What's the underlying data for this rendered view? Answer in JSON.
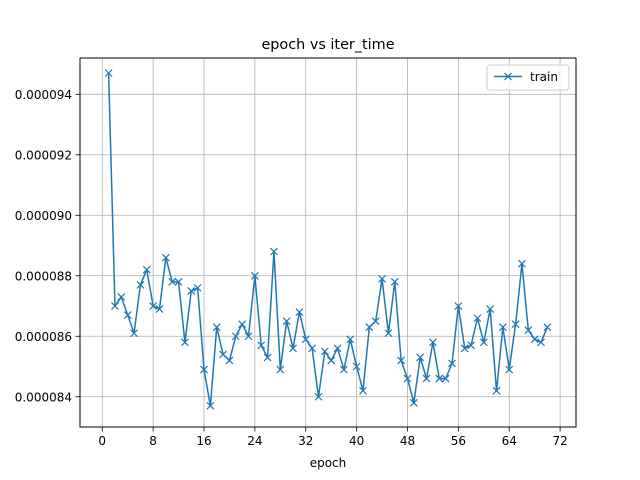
{
  "chart_data": {
    "type": "line",
    "title": "epoch vs iter_time",
    "xlabel": "epoch",
    "ylabel": "",
    "xlim": [
      -3.5,
      74.5
    ],
    "ylim": [
      8.3e-05,
      9.52e-05
    ],
    "xticks": [
      0,
      8,
      16,
      24,
      32,
      40,
      48,
      56,
      64,
      72
    ],
    "xtick_labels": [
      "0",
      "8",
      "16",
      "24",
      "32",
      "40",
      "48",
      "56",
      "64",
      "72"
    ],
    "yticks": [
      8.4e-05,
      8.6e-05,
      8.8e-05,
      9e-05,
      9.2e-05,
      9.4e-05
    ],
    "ytick_labels": [
      "0.000084",
      "0.000086",
      "0.000088",
      "0.000090",
      "0.000092",
      "0.000094"
    ],
    "grid": true,
    "legend_position": "upper right",
    "series": [
      {
        "name": "train",
        "color": "#1f77b4",
        "marker": "x",
        "x": [
          1,
          2,
          3,
          4,
          5,
          6,
          7,
          8,
          9,
          10,
          11,
          12,
          13,
          14,
          15,
          16,
          17,
          18,
          19,
          20,
          21,
          22,
          23,
          24,
          25,
          26,
          27,
          28,
          29,
          30,
          31,
          32,
          33,
          34,
          35,
          36,
          37,
          38,
          39,
          40,
          41,
          42,
          43,
          44,
          45,
          46,
          47,
          48,
          49,
          50,
          51,
          52,
          53,
          54,
          55,
          56,
          57,
          58,
          59,
          60,
          61,
          62,
          63,
          64,
          65,
          66,
          67,
          68,
          69,
          70
        ],
        "y": [
          9.47e-05,
          8.7e-05,
          8.73e-05,
          8.67e-05,
          8.61e-05,
          8.77e-05,
          8.82e-05,
          8.7e-05,
          8.69e-05,
          8.86e-05,
          8.78e-05,
          8.78e-05,
          8.58e-05,
          8.75e-05,
          8.76e-05,
          8.49e-05,
          8.37e-05,
          8.63e-05,
          8.54e-05,
          8.52e-05,
          8.6e-05,
          8.64e-05,
          8.6e-05,
          8.8e-05,
          8.57e-05,
          8.53e-05,
          8.88e-05,
          8.49e-05,
          8.65e-05,
          8.56e-05,
          8.68e-05,
          8.59e-05,
          8.56e-05,
          8.4e-05,
          8.55e-05,
          8.52e-05,
          8.56e-05,
          8.49e-05,
          8.59e-05,
          8.5e-05,
          8.42e-05,
          8.63e-05,
          8.65e-05,
          8.79e-05,
          8.61e-05,
          8.78e-05,
          8.52e-05,
          8.46e-05,
          8.38e-05,
          8.53e-05,
          8.46e-05,
          8.58e-05,
          8.46e-05,
          8.46e-05,
          8.51e-05,
          8.7e-05,
          8.56e-05,
          8.57e-05,
          8.66e-05,
          8.58e-05,
          8.69e-05,
          8.42e-05,
          8.63e-05,
          8.49e-05,
          8.64e-05,
          8.84e-05,
          8.62e-05,
          8.59e-05,
          8.58e-05,
          8.63e-05
        ]
      }
    ]
  }
}
